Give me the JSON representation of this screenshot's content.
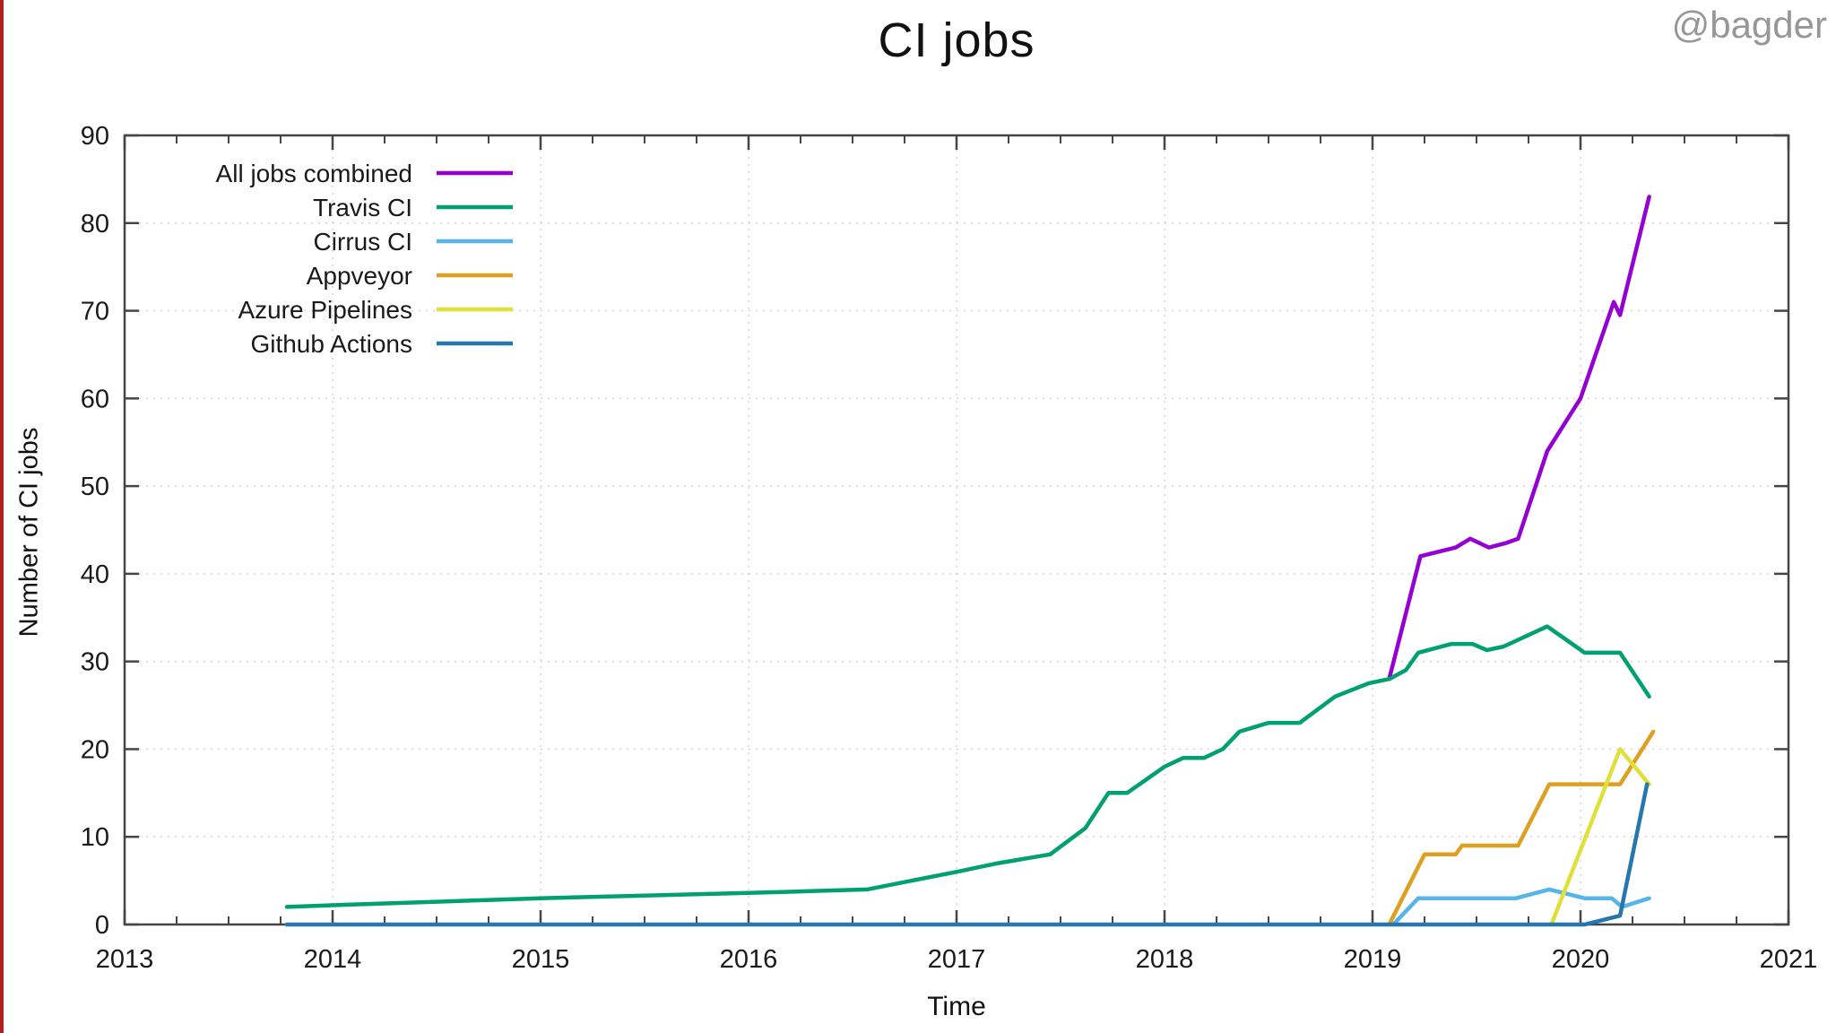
{
  "page": {
    "watermark": "@bagder",
    "red_strip_color": "#b42020",
    "background": "#ffffff"
  },
  "chart_data": {
    "type": "line",
    "title": "CI jobs",
    "xlabel": "Time",
    "ylabel": "Number of CI jobs",
    "xlim": [
      2013,
      2021
    ],
    "ylim": [
      0,
      90
    ],
    "xticks": [
      2013,
      2014,
      2015,
      2016,
      2017,
      2018,
      2019,
      2020,
      2021
    ],
    "yticks": [
      0,
      10,
      20,
      30,
      40,
      50,
      60,
      70,
      80,
      90
    ],
    "grid": true,
    "grid_color": "#ddd2dd",
    "axis_color": "#454545",
    "legend_position": "top-left-inside",
    "series": [
      {
        "name": "All jobs combined",
        "color": "#9400d3",
        "points": [
          [
            2019.08,
            28
          ],
          [
            2019.23,
            42
          ],
          [
            2019.4,
            43
          ],
          [
            2019.47,
            44
          ],
          [
            2019.56,
            43
          ],
          [
            2019.64,
            43.5
          ],
          [
            2019.7,
            44
          ],
          [
            2019.84,
            54
          ],
          [
            2020.0,
            60
          ],
          [
            2020.16,
            71
          ],
          [
            2020.19,
            69.5
          ],
          [
            2020.33,
            83
          ]
        ]
      },
      {
        "name": "Travis CI",
        "color": "#00a070",
        "points": [
          [
            2013.78,
            2
          ],
          [
            2014.0,
            2.2
          ],
          [
            2014.5,
            2.6
          ],
          [
            2015.0,
            3
          ],
          [
            2015.5,
            3.3
          ],
          [
            2016.0,
            3.6
          ],
          [
            2016.3,
            3.8
          ],
          [
            2016.57,
            4
          ],
          [
            2017.0,
            6
          ],
          [
            2017.2,
            7
          ],
          [
            2017.45,
            8
          ],
          [
            2017.62,
            11
          ],
          [
            2017.73,
            15
          ],
          [
            2017.82,
            15
          ],
          [
            2018.0,
            18
          ],
          [
            2018.09,
            19
          ],
          [
            2018.19,
            19
          ],
          [
            2018.28,
            20
          ],
          [
            2018.36,
            22
          ],
          [
            2018.5,
            23
          ],
          [
            2018.65,
            23
          ],
          [
            2018.82,
            26
          ],
          [
            2018.98,
            27.5
          ],
          [
            2019.08,
            28
          ],
          [
            2019.16,
            29
          ],
          [
            2019.22,
            31
          ],
          [
            2019.38,
            32
          ],
          [
            2019.48,
            32
          ],
          [
            2019.55,
            31.3
          ],
          [
            2019.63,
            31.7
          ],
          [
            2019.84,
            34
          ],
          [
            2019.99,
            31.5
          ],
          [
            2020.02,
            31
          ],
          [
            2020.19,
            31
          ],
          [
            2020.33,
            26
          ]
        ]
      },
      {
        "name": "Cirrus CI",
        "color": "#56b4e9",
        "points": [
          [
            2019.1,
            0
          ],
          [
            2019.22,
            3
          ],
          [
            2019.69,
            3
          ],
          [
            2019.85,
            4
          ],
          [
            2020.02,
            3
          ],
          [
            2020.15,
            3
          ],
          [
            2020.2,
            2
          ],
          [
            2020.33,
            3
          ]
        ]
      },
      {
        "name": "Appveyor",
        "color": "#dfa021",
        "points": [
          [
            2019.08,
            0
          ],
          [
            2019.25,
            8
          ],
          [
            2019.4,
            8
          ],
          [
            2019.43,
            9
          ],
          [
            2019.7,
            9
          ],
          [
            2019.85,
            16
          ],
          [
            2020.19,
            16
          ],
          [
            2020.35,
            22
          ]
        ]
      },
      {
        "name": "Azure Pipelines",
        "color": "#e0e03a",
        "points": [
          [
            2019.86,
            0
          ],
          [
            2020.19,
            20
          ],
          [
            2020.33,
            16
          ]
        ]
      },
      {
        "name": "Github Actions",
        "color": "#2677b0",
        "points": [
          [
            2013.78,
            0
          ],
          [
            2020.02,
            0
          ],
          [
            2020.19,
            1
          ],
          [
            2020.32,
            16
          ]
        ]
      }
    ]
  }
}
